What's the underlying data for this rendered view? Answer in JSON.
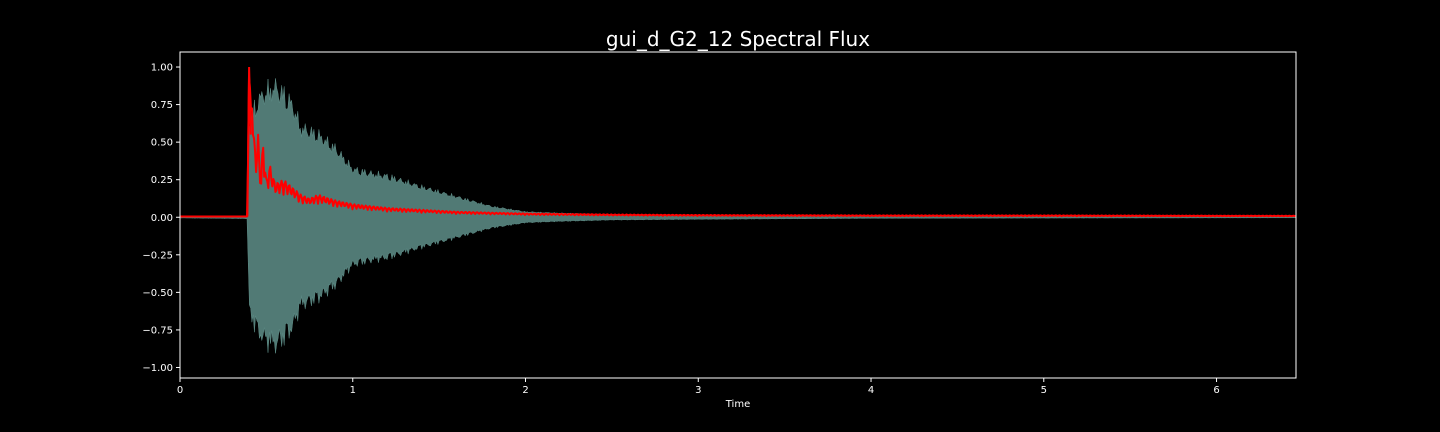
{
  "chart_data": {
    "type": "area",
    "title": "gui_d_G2_12 Spectral Flux",
    "xlabel": "Time",
    "ylabel": "",
    "xlim": [
      0,
      6.46
    ],
    "ylim": [
      -1.07,
      1.1
    ],
    "x_ticks": [
      0,
      1,
      2,
      3,
      4,
      5,
      6
    ],
    "x_tick_labels": [
      "0",
      "1",
      "2",
      "3",
      "4",
      "5",
      "6"
    ],
    "y_ticks": [
      1.0,
      0.75,
      0.5,
      0.25,
      0.0,
      -0.25,
      -0.5,
      -0.75,
      -1.0
    ],
    "y_tick_labels": [
      "1.00",
      "0.75",
      "0.50",
      "0.25",
      "0.00",
      "−0.25",
      "−0.50",
      "−0.75",
      "−1.00"
    ],
    "grid": false,
    "background_color": "#000000",
    "series": [
      {
        "type": "area",
        "color": "#5f8f89",
        "envelope": [
          [
            0.0,
            0.005
          ],
          [
            0.39,
            0.01
          ],
          [
            0.4,
            0.7
          ],
          [
            0.45,
            0.85
          ],
          [
            0.5,
            0.92
          ],
          [
            0.55,
            0.95
          ],
          [
            0.6,
            0.9
          ],
          [
            0.65,
            0.82
          ],
          [
            0.7,
            0.65
          ],
          [
            0.8,
            0.6
          ],
          [
            0.9,
            0.5
          ],
          [
            1.0,
            0.35
          ],
          [
            1.1,
            0.32
          ],
          [
            1.2,
            0.3
          ],
          [
            1.3,
            0.26
          ],
          [
            1.4,
            0.22
          ],
          [
            1.6,
            0.15
          ],
          [
            1.8,
            0.08
          ],
          [
            2.0,
            0.04
          ],
          [
            2.2,
            0.03
          ],
          [
            2.5,
            0.02
          ],
          [
            3.0,
            0.015
          ],
          [
            4.0,
            0.008
          ],
          [
            5.0,
            0.006
          ],
          [
            6.46,
            0.004
          ]
        ]
      },
      {
        "type": "line",
        "color": "#ff0000",
        "points": [
          [
            0.0,
            0.005
          ],
          [
            0.39,
            0.005
          ],
          [
            0.4,
            1.0
          ],
          [
            0.41,
            0.55
          ],
          [
            0.42,
            0.75
          ],
          [
            0.43,
            0.4
          ],
          [
            0.44,
            0.3
          ],
          [
            0.45,
            0.5
          ],
          [
            0.46,
            0.28
          ],
          [
            0.47,
            0.22
          ],
          [
            0.48,
            0.42
          ],
          [
            0.5,
            0.2
          ],
          [
            0.52,
            0.28
          ],
          [
            0.55,
            0.18
          ],
          [
            0.6,
            0.2
          ],
          [
            0.65,
            0.16
          ],
          [
            0.7,
            0.12
          ],
          [
            0.75,
            0.1
          ],
          [
            0.8,
            0.12
          ],
          [
            0.9,
            0.09
          ],
          [
            1.0,
            0.07
          ],
          [
            1.2,
            0.05
          ],
          [
            1.4,
            0.04
          ],
          [
            1.6,
            0.03
          ],
          [
            1.8,
            0.025
          ],
          [
            2.0,
            0.02
          ],
          [
            2.5,
            0.015
          ],
          [
            3.0,
            0.012
          ],
          [
            4.0,
            0.01
          ],
          [
            5.0,
            0.01
          ],
          [
            6.46,
            0.008
          ]
        ]
      }
    ]
  }
}
